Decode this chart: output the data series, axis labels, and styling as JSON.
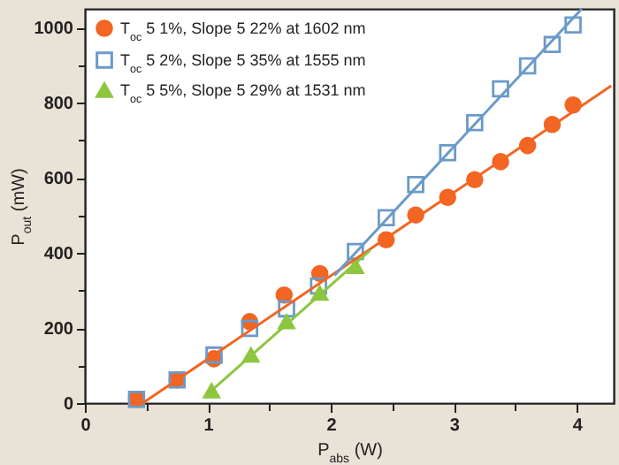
{
  "chart_data": {
    "type": "scatter",
    "xlabel": "P$_{abs}$ (W)",
    "ylabel": "P$_{out}$ (mW)",
    "xlim": [
      0,
      4.3
    ],
    "ylim": [
      0,
      1050
    ],
    "xticks": [
      0,
      {
        "value": 0.5,
        "label": null
      },
      1,
      {
        "value": 1.5,
        "label": null
      },
      2,
      {
        "value": 2.5,
        "label": null
      },
      3,
      {
        "value": 3.5,
        "label": null
      },
      4
    ],
    "yticks": [
      0,
      {
        "value": 100,
        "label": null
      },
      200,
      {
        "value": 300,
        "label": null
      },
      400,
      {
        "value": 500,
        "label": null
      },
      600,
      {
        "value": 700,
        "label": null
      },
      800,
      {
        "value": 900,
        "label": null
      },
      1000
    ],
    "grid": false,
    "legend": "top left",
    "series": [
      {
        "name": "T$_{oc}$ 5 1%, Slope 5 22% at 1602 nm",
        "color": "#f26522",
        "marker": "circle",
        "x": [
          0.42,
          0.75,
          1.05,
          1.34,
          1.62,
          1.91,
          2.45,
          2.69,
          2.95,
          3.17,
          3.38,
          3.6,
          3.8,
          3.97
        ],
        "values": [
          10,
          62,
          118,
          217,
          288,
          345,
          435,
          501,
          548,
          595,
          643,
          686,
          742,
          794
        ]
      },
      {
        "name": "T$_{oc}$ 5 2%, Slope 5 35% at 1555 nm",
        "color": "#6a9ac9",
        "marker": "square",
        "x": [
          0.42,
          0.75,
          1.05,
          1.34,
          1.64,
          1.9,
          2.2,
          2.45,
          2.69,
          2.95,
          3.17,
          3.38,
          3.6,
          3.8,
          3.97
        ],
        "values": [
          10,
          62,
          128,
          199,
          251,
          312,
          404,
          494,
          582,
          667,
          747,
          837,
          898,
          955,
          1007
        ]
      },
      {
        "name": "T$_{oc}$ 5 5%, Slope 5 29% at 1531 nm",
        "color": "#8dc63f",
        "marker": "triangle",
        "x": [
          1.03,
          1.35,
          1.64,
          1.91,
          2.2
        ],
        "values": [
          33,
          128,
          217,
          293,
          364
        ]
      },
      {
        "type": "line",
        "color": "#f26522",
        "marker": "none",
        "x": [
          0.47,
          4.28
        ],
        "values": [
          0,
          845
        ]
      },
      {
        "type": "line",
        "color": "#6a9ac9",
        "marker": "none",
        "x": [
          2.03,
          4.04
        ],
        "values": [
          340,
          1050
        ]
      },
      {
        "type": "line",
        "color": "#8dc63f",
        "marker": "none",
        "x": [
          0.98,
          2.32
        ],
        "values": [
          19,
          407
        ]
      }
    ]
  }
}
